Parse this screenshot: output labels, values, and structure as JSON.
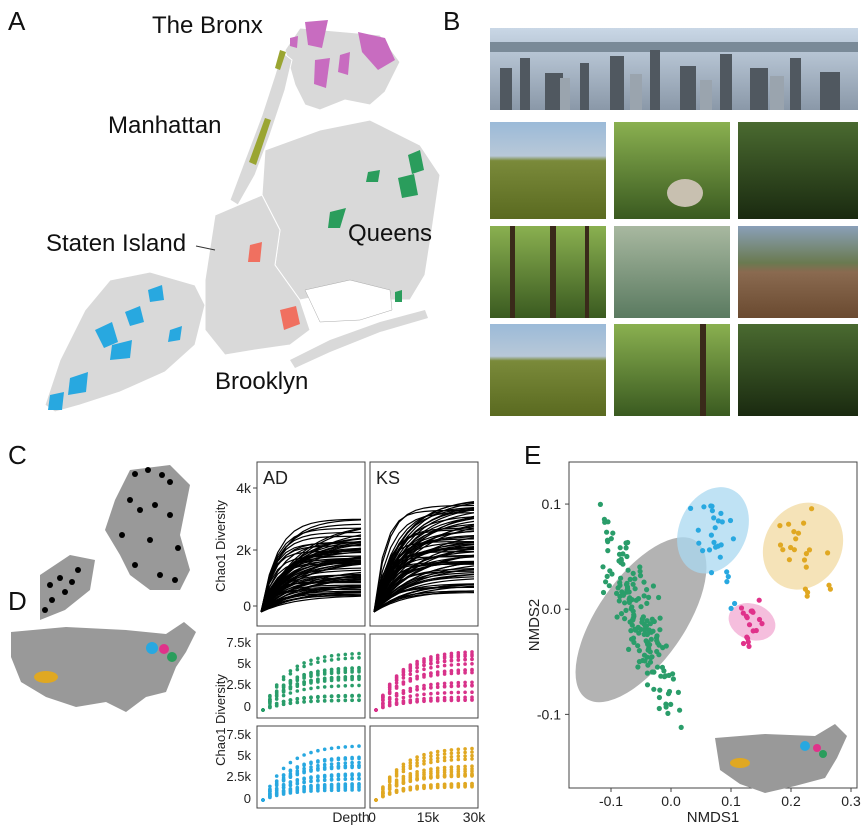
{
  "panels": {
    "a": "A",
    "b": "B",
    "c": "C",
    "d": "D",
    "e": "E"
  },
  "boroughs": {
    "bronx": "The Bronx",
    "manhattan": "Manhattan",
    "staten": "Staten Island",
    "queens": "Queens",
    "brooklyn": "Brooklyn"
  },
  "colors": {
    "bronx": "#c86cc0",
    "manhattan": "#9aa532",
    "staten": "#28a8e0",
    "queens": "#2a9d5c",
    "brooklyn": "#f07060",
    "land": "#d9d9d9",
    "ad": "#2a9d6a",
    "ks": "#d8328a",
    "blue": "#28a8e0",
    "gold": "#e0a822",
    "grey_ellipse": "#9a9a9a"
  },
  "photos": {
    "count": 10
  },
  "chao": {
    "ylabel": "Chao1 Diversity",
    "top_left_label": "AD",
    "top_right_label": "KS",
    "top_yticks": [
      "4k",
      "2k",
      "0"
    ],
    "bottom_yticks": [
      "7.5k",
      "5k",
      "2.5k",
      "0"
    ],
    "xlabel": "Depth",
    "xticks": [
      "0",
      "15k",
      "30k"
    ]
  },
  "chart_data": {
    "type": "scatter",
    "xlabel": "NMDS1",
    "ylabel": "NMDS2",
    "xlim": [
      -0.17,
      0.31
    ],
    "ylim": [
      -0.17,
      0.14
    ],
    "xticks": [
      "-0.1",
      "0.0",
      "0.1",
      "0.2",
      "0.3"
    ],
    "yticks": [
      "0.1",
      "0.0",
      "-0.1"
    ],
    "series": [
      {
        "color": "#2a9d6a",
        "ellipse": {
          "cx": -0.05,
          "cy": -0.01,
          "rx": 0.16,
          "ry": 0.045,
          "angle": -55
        }
      },
      {
        "color": "#28a8e0",
        "ellipse": {
          "cx": 0.07,
          "cy": 0.075,
          "rx": 0.075,
          "ry": 0.035,
          "angle": -65
        }
      },
      {
        "color": "#e0328a",
        "ellipse": {
          "cx": 0.135,
          "cy": -0.012,
          "rx": 0.03,
          "ry": 0.025,
          "angle": -70
        }
      },
      {
        "color": "#e0a822",
        "ellipse": {
          "cx": 0.22,
          "cy": 0.06,
          "rx": 0.075,
          "ry": 0.04,
          "angle": -60
        }
      }
    ]
  }
}
